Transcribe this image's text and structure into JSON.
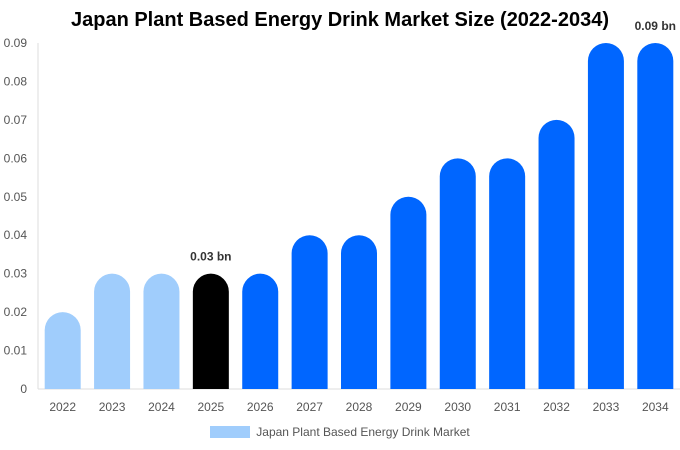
{
  "chart_data": {
    "type": "bar",
    "title": "Japan Plant Based Energy Drink Market Size (2022-2034)",
    "categories": [
      "2022",
      "2023",
      "2024",
      "2025",
      "2026",
      "2027",
      "2028",
      "2029",
      "2030",
      "2031",
      "2032",
      "2033",
      "2034"
    ],
    "series": [
      {
        "name": "Japan Plant Based Energy Drink Market",
        "values": [
          0.02,
          0.03,
          0.03,
          0.03,
          0.03,
          0.04,
          0.04,
          0.05,
          0.06,
          0.06,
          0.07,
          0.09,
          0.09
        ]
      }
    ],
    "bar_colors": [
      "#a0cdfc",
      "#a0cdfc",
      "#a0cdfc",
      "#000000",
      "#0066ff",
      "#0066ff",
      "#0066ff",
      "#0066ff",
      "#0066ff",
      "#0066ff",
      "#0066ff",
      "#0066ff",
      "#0066ff"
    ],
    "data_labels": [
      {
        "category": "2025",
        "text": "0.03 bn"
      },
      {
        "category": "2034",
        "text": "0.09 bn"
      }
    ],
    "yticks": [
      "0",
      "0.01",
      "0.02",
      "0.03",
      "0.04",
      "0.05",
      "0.06",
      "0.07",
      "0.08",
      "0.09"
    ],
    "ylim": [
      0,
      0.09
    ],
    "xlabel": "",
    "ylabel": "",
    "grid": false,
    "legend": "bottom",
    "legend_color": "#a0cdfc"
  }
}
